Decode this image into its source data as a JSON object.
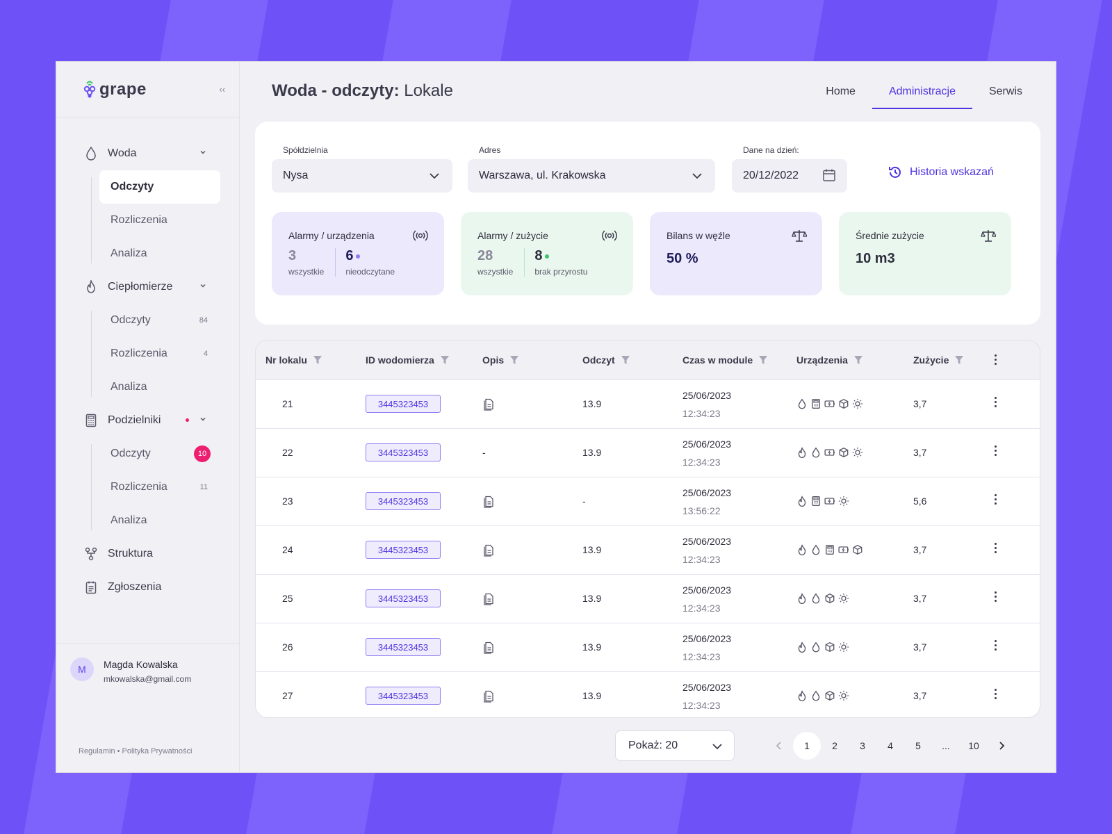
{
  "app": {
    "name": "grape"
  },
  "page": {
    "title_bold": "Woda - odczyty:",
    "title_rest": " Lokale"
  },
  "tabs": [
    {
      "label": "Home"
    },
    {
      "label": "Administracje"
    },
    {
      "label": "Serwis"
    }
  ],
  "sidebar": {
    "groups": [
      {
        "label": "Woda",
        "icon": "droplet-icon",
        "items": [
          {
            "label": "Odczyty",
            "active": true
          },
          {
            "label": "Rozliczenia"
          },
          {
            "label": "Analiza"
          }
        ]
      },
      {
        "label": "Ciepłomierze",
        "icon": "flame-icon",
        "items": [
          {
            "label": "Odczyty",
            "count": "84"
          },
          {
            "label": "Rozliczenia",
            "count": "4"
          },
          {
            "label": "Analiza"
          }
        ]
      },
      {
        "label": "Podzielniki",
        "icon": "calculator-icon",
        "items": [
          {
            "label": "Odczyty",
            "badge": "10"
          },
          {
            "label": "Rozliczenia",
            "count": "11"
          },
          {
            "label": "Analiza"
          }
        ]
      }
    ],
    "links": [
      {
        "label": "Struktura"
      },
      {
        "label": "Zgłoszenia"
      }
    ]
  },
  "user": {
    "initial": "M",
    "name": "Magda Kowalska",
    "email": "mkowalska@gmail.com"
  },
  "footer": {
    "text": "Regulamin • Polityka Prywatności"
  },
  "filters": {
    "coop": {
      "label": "Spółdzielnia",
      "value": "Nysa"
    },
    "address": {
      "label": "Adres",
      "value": "Warszawa, ul. Krakowska"
    },
    "date": {
      "label": "Dane na dzień:",
      "value": "20/12/2022"
    },
    "history": "Historia wskazań"
  },
  "cards": [
    {
      "title": "Alarmy / urządzenia",
      "a_value": "3",
      "a_label": "wszystkie",
      "b_value": "6",
      "b_label": "nieodczytane"
    },
    {
      "title": "Alarmy / zużycie",
      "a_value": "28",
      "a_label": "wszystkie",
      "b_value": "8",
      "b_label": "brak przyrostu"
    },
    {
      "title": "Bilans w węźle",
      "value": "50 %"
    },
    {
      "title": "Średnie zużycie",
      "value": "10 m3"
    }
  ],
  "colors": {
    "accent": "#4f33e0",
    "badge": "#ec1f71",
    "purple_dot": "#8a7cf0",
    "green_dot": "#3cc46a"
  },
  "table": {
    "headers": [
      "Nr lokalu",
      "ID wodomierza",
      "Opis",
      "Odczyt",
      "Czas w module",
      "Urządzenia",
      "Zużycie"
    ],
    "rows": [
      {
        "nr": "21",
        "id": "3445323453",
        "opis": "doc",
        "odczyt": "13.9",
        "date": "25/06/2023",
        "time": "12:34:23",
        "devices": [
          "drop",
          "calc",
          "battery",
          "cube",
          "sun"
        ],
        "zuzycie": "3,7"
      },
      {
        "nr": "22",
        "id": "3445323453",
        "opis": "-",
        "odczyt": "13.9",
        "date": "25/06/2023",
        "time": "12:34:23",
        "devices": [
          "flame",
          "drop",
          "battery",
          "cube",
          "sun"
        ],
        "zuzycie": "3,7"
      },
      {
        "nr": "23",
        "id": "3445323453",
        "opis": "doc",
        "odczyt": "-",
        "date": "25/06/2023",
        "time": "13:56:22",
        "devices": [
          "flame",
          "calc",
          "battery",
          "sun"
        ],
        "zuzycie": "5,6"
      },
      {
        "nr": "24",
        "id": "3445323453",
        "opis": "doc",
        "odczyt": "13.9",
        "date": "25/06/2023",
        "time": "12:34:23",
        "devices": [
          "flame",
          "drop",
          "calc",
          "battery",
          "cube"
        ],
        "zuzycie": "3,7"
      },
      {
        "nr": "25",
        "id": "3445323453",
        "opis": "doc",
        "odczyt": "13.9",
        "date": "25/06/2023",
        "time": "12:34:23",
        "devices": [
          "flame",
          "drop",
          "cube",
          "sun"
        ],
        "zuzycie": "3,7"
      },
      {
        "nr": "26",
        "id": "3445323453",
        "opis": "doc",
        "odczyt": "13.9",
        "date": "25/06/2023",
        "time": "12:34:23",
        "devices": [
          "flame",
          "drop",
          "cube",
          "sun"
        ],
        "zuzycie": "3,7"
      },
      {
        "nr": "27",
        "id": "3445323453",
        "opis": "doc",
        "odczyt": "13.9",
        "date": "25/06/2023",
        "time": "12:34:23",
        "devices": [
          "flame",
          "drop",
          "cube",
          "sun"
        ],
        "zuzycie": "3,7"
      }
    ]
  },
  "pagination": {
    "show_label": "Pokaż: 20",
    "pages": [
      "1",
      "2",
      "3",
      "4",
      "5",
      "...",
      "10"
    ],
    "current": "1"
  }
}
